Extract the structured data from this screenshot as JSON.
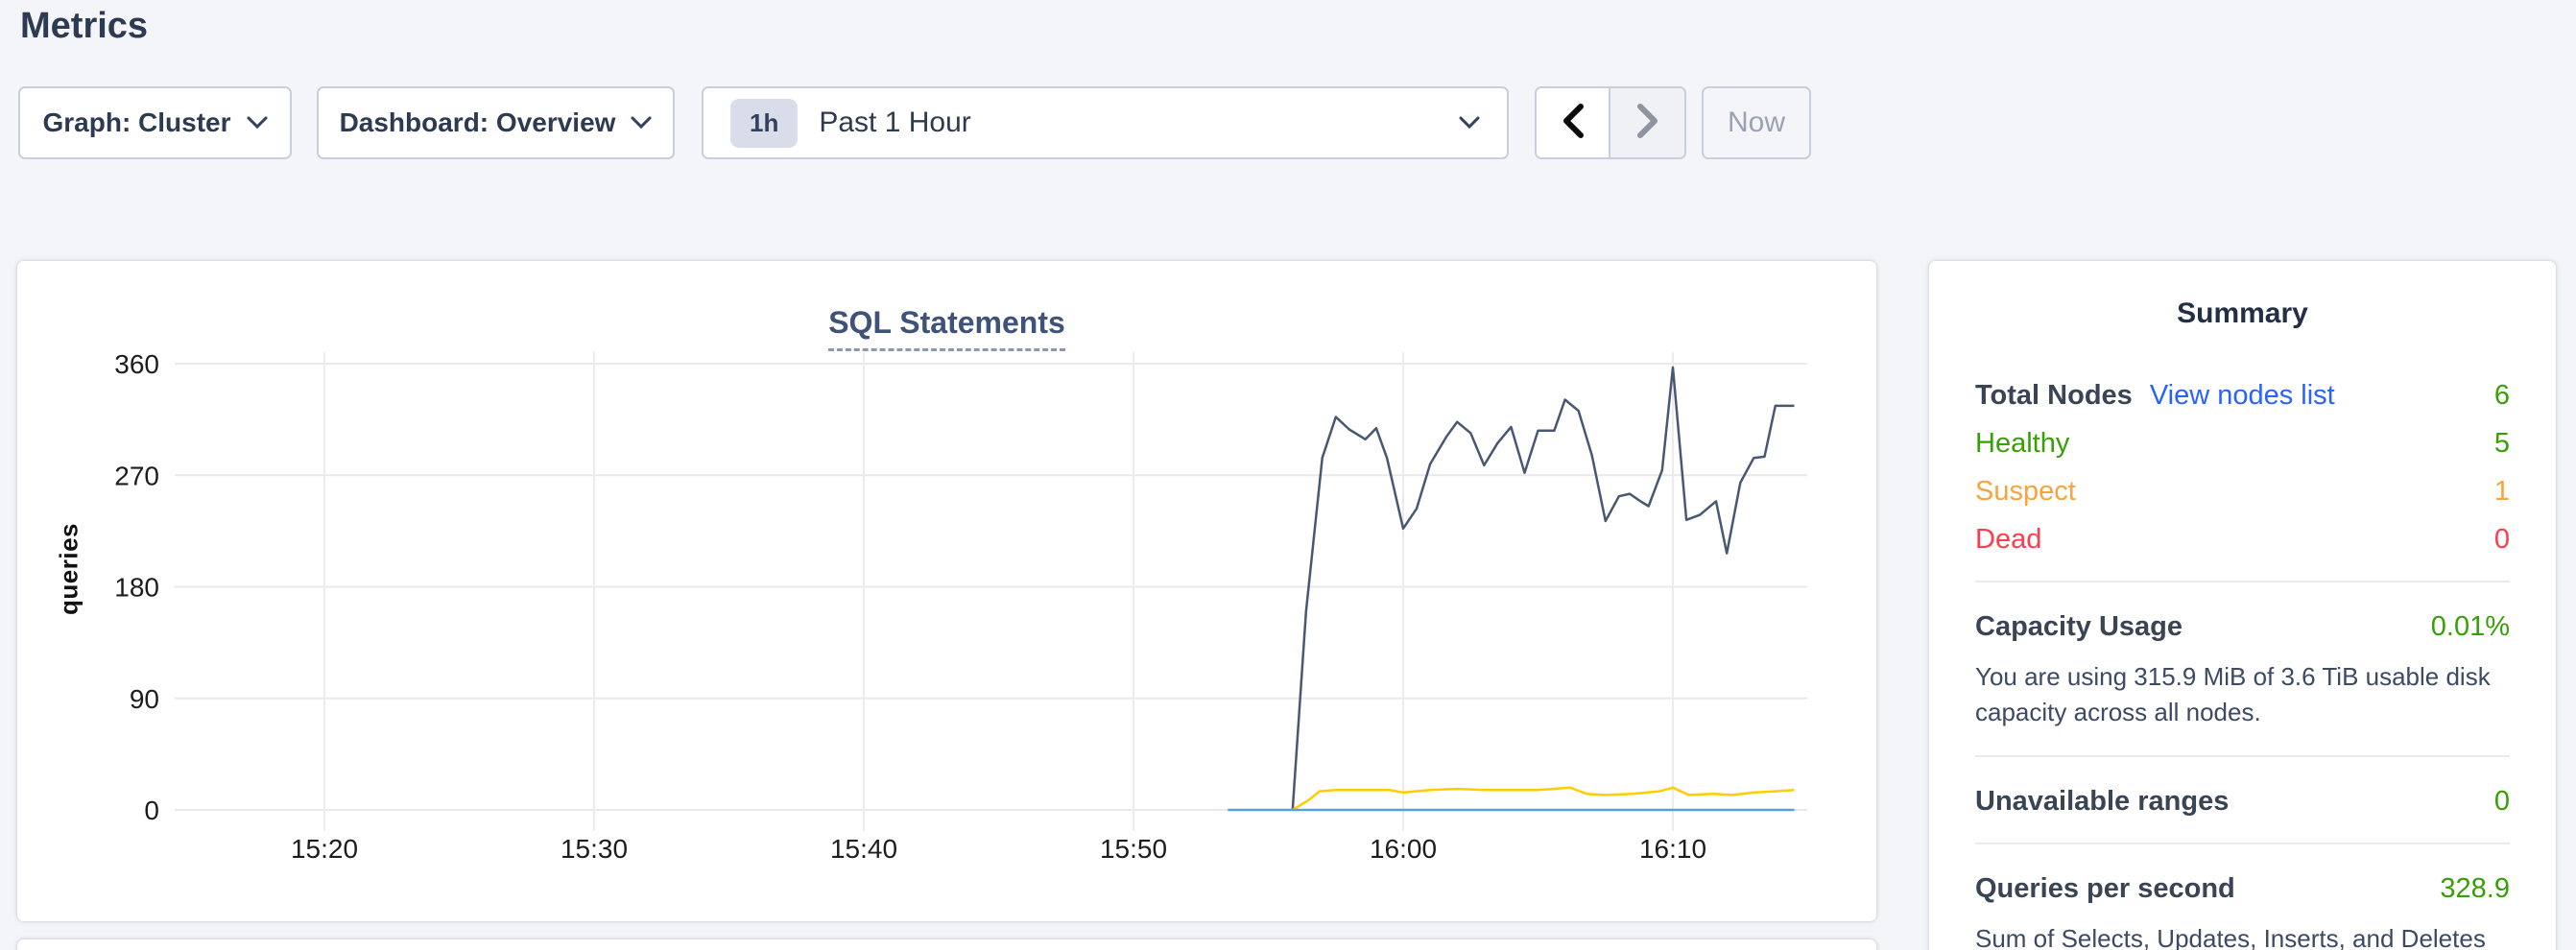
{
  "page": {
    "title": "Metrics"
  },
  "toolbar": {
    "graph_dropdown": {
      "label": "Graph: Cluster"
    },
    "dashboard_dropdown": {
      "label": "Dashboard: Overview"
    },
    "time_selector": {
      "badge": "1h",
      "label": "Past 1 Hour"
    },
    "now_button_label": "Now"
  },
  "chart_data": {
    "type": "line",
    "title": "SQL Statements",
    "ylabel": "queries",
    "ylim": [
      0,
      360
    ],
    "grid": true,
    "legend_position": "none",
    "x_unit": "minutes after 15:20",
    "x_ticks": [
      {
        "t": 0,
        "label": "15:20"
      },
      {
        "t": 10,
        "label": "15:30"
      },
      {
        "t": 20,
        "label": "15:40"
      },
      {
        "t": 30,
        "label": "15:50"
      },
      {
        "t": 40,
        "label": "16:00"
      },
      {
        "t": 50,
        "label": "16:10"
      }
    ],
    "y_ticks": [
      0,
      90,
      180,
      270,
      360
    ],
    "series": [
      {
        "name": "series-dark-blue",
        "color": "#475872",
        "points": [
          [
            35.9,
            0
          ],
          [
            36.4,
            160
          ],
          [
            37.0,
            284
          ],
          [
            37.5,
            317
          ],
          [
            38.0,
            307
          ],
          [
            38.6,
            299
          ],
          [
            39.0,
            308
          ],
          [
            39.4,
            284
          ],
          [
            40.0,
            227
          ],
          [
            40.5,
            243
          ],
          [
            41.0,
            279
          ],
          [
            41.6,
            301
          ],
          [
            42.0,
            313
          ],
          [
            42.5,
            304
          ],
          [
            43.0,
            278
          ],
          [
            43.5,
            296
          ],
          [
            44.0,
            309
          ],
          [
            44.5,
            272
          ],
          [
            45.0,
            306
          ],
          [
            45.6,
            306
          ],
          [
            46.0,
            331
          ],
          [
            46.5,
            322
          ],
          [
            47.0,
            286
          ],
          [
            47.5,
            233
          ],
          [
            48.0,
            253
          ],
          [
            48.4,
            255
          ],
          [
            48.8,
            249
          ],
          [
            49.1,
            245
          ],
          [
            49.6,
            274
          ],
          [
            50.0,
            357
          ],
          [
            50.5,
            234
          ],
          [
            51.0,
            238
          ],
          [
            51.6,
            249
          ],
          [
            52.0,
            207
          ],
          [
            52.5,
            264
          ],
          [
            53.0,
            284
          ],
          [
            53.4,
            285
          ],
          [
            53.8,
            326
          ],
          [
            54.5,
            326
          ]
        ]
      },
      {
        "name": "series-yellow",
        "color": "#ffcd02",
        "points": [
          [
            35.9,
            0
          ],
          [
            36.5,
            8
          ],
          [
            36.9,
            15
          ],
          [
            37.5,
            16
          ],
          [
            38.5,
            16
          ],
          [
            39.5,
            16
          ],
          [
            40.0,
            14
          ],
          [
            41.0,
            16
          ],
          [
            42.0,
            17
          ],
          [
            43.0,
            16
          ],
          [
            44.0,
            16
          ],
          [
            45.0,
            16
          ],
          [
            46.2,
            18
          ],
          [
            46.8,
            13
          ],
          [
            47.5,
            12
          ],
          [
            48.5,
            13
          ],
          [
            49.5,
            15
          ],
          [
            50.0,
            18
          ],
          [
            50.6,
            12
          ],
          [
            51.5,
            13
          ],
          [
            52.2,
            12
          ],
          [
            53.0,
            14
          ],
          [
            53.8,
            15
          ],
          [
            54.5,
            16
          ]
        ]
      },
      {
        "name": "series-light-blue",
        "color": "#55a1e0",
        "points": [
          [
            33.5,
            0
          ],
          [
            54.5,
            0
          ]
        ]
      }
    ],
    "style": {
      "grid_color": "#e9e9e9",
      "tick_text_color": "#1d1d1d",
      "tick_font_size": 28
    }
  },
  "summary": {
    "title": "Summary",
    "node_rows": [
      {
        "label": "Total Nodes",
        "link": "View nodes list",
        "value": "6",
        "label_color_class": "lbl-bold",
        "value_color": "#37a007"
      },
      {
        "label": "Healthy",
        "link": "",
        "value": "5",
        "label_color_class": "txt-green",
        "value_color": "#37a007"
      },
      {
        "label": "Suspect",
        "link": "",
        "value": "1",
        "label_color_class": "txt-orange",
        "value_color": "#f7a43c"
      },
      {
        "label": "Dead",
        "link": "",
        "value": "0",
        "label_color_class": "txt-red",
        "value_color": "#ff3b4e"
      }
    ],
    "sections": [
      {
        "label": "Capacity Usage",
        "value": "0.01%",
        "desc": "You are using 315.9 MiB of 3.6 TiB usable disk capacity across all nodes."
      },
      {
        "label": "Unavailable ranges",
        "value": "0",
        "desc": ""
      },
      {
        "label": "Queries per second",
        "value": "328.9",
        "desc": "Sum of Selects, Updates, Inserts, and Deletes across your entire cluster."
      }
    ]
  },
  "colors": {
    "accent_link": "#2962ff",
    "green": "#37a007",
    "orange": "#f7a43c",
    "red": "#ff3b4e"
  }
}
